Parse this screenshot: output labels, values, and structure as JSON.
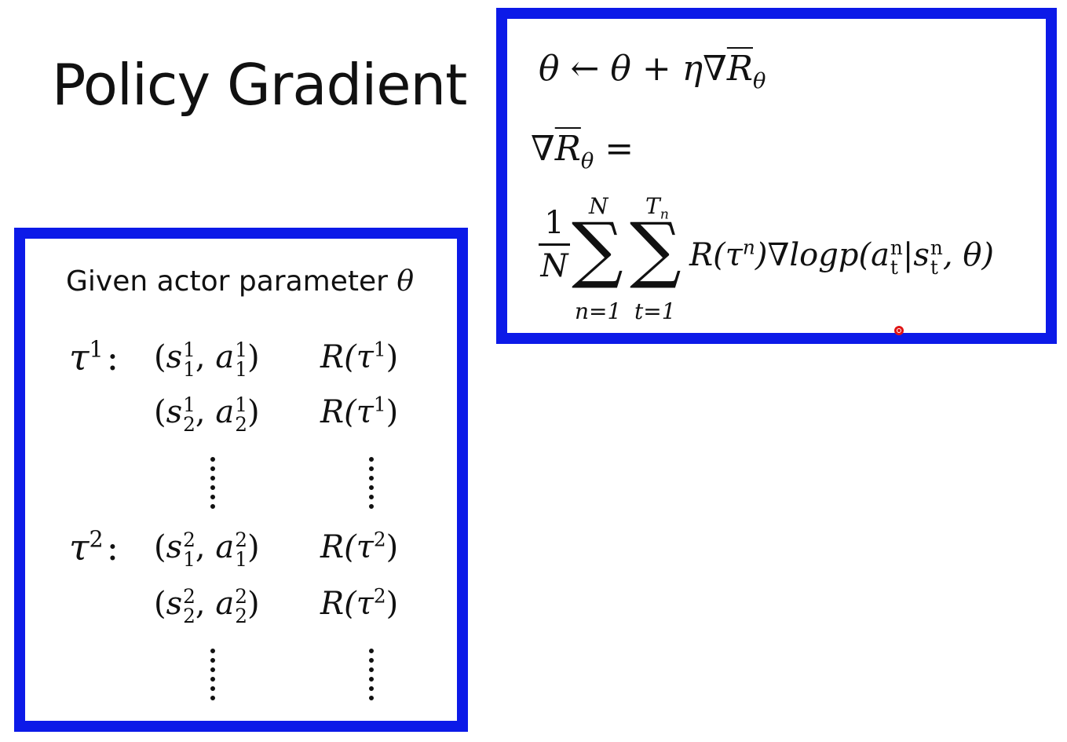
{
  "title": "Policy Gradient",
  "left_box": {
    "given_text": "Given actor parameter ",
    "given_symbol": "θ",
    "trajectories": [
      {
        "label": "τ",
        "index": "1",
        "steps": [
          {
            "s": "s",
            "sup": "1",
            "sub": "1",
            "a": "a",
            "a_sup": "1",
            "a_sub": "1",
            "reward": "R(τ",
            "reward_sup": "1",
            "reward_close": ")"
          },
          {
            "s": "s",
            "sup": "1",
            "sub": "2",
            "a": "a",
            "a_sup": "1",
            "a_sub": "2",
            "reward": "R(τ",
            "reward_sup": "1",
            "reward_close": ")"
          }
        ]
      },
      {
        "label": "τ",
        "index": "2",
        "steps": [
          {
            "s": "s",
            "sup": "2",
            "sub": "1",
            "a": "a",
            "a_sup": "2",
            "a_sub": "1",
            "reward": "R(τ",
            "reward_sup": "2",
            "reward_close": ")"
          },
          {
            "s": "s",
            "sup": "2",
            "sub": "2",
            "a": "a",
            "a_sup": "2",
            "a_sub": "2",
            "reward": "R(τ",
            "reward_sup": "2",
            "reward_close": ")"
          }
        ]
      }
    ]
  },
  "right_box": {
    "update_rule": {
      "lhs": "θ",
      "arrow": "←",
      "rhs_theta": "θ",
      "plus": "+",
      "eta": "η",
      "nabla": "∇",
      "R": "R",
      "R_sub": "θ"
    },
    "gradient_lhs": {
      "nabla": "∇",
      "R": "R",
      "R_sub": "θ",
      "equals": "="
    },
    "expansion": {
      "frac_num": "1",
      "frac_den": "N",
      "sum1_symbol": "∑",
      "sum1_upper": "N",
      "sum1_lower": "n=1",
      "sum2_symbol": "∑",
      "sum2_upper": "T",
      "sum2_upper_sub": "n",
      "sum2_lower": "t=1",
      "body_R": "R(τ",
      "body_R_sup": "n",
      "body_mid": ")∇logp(a",
      "a_sup": "n",
      "a_sub": "t",
      "pipe": "|s",
      "s_sup": "n",
      "s_sub": "t",
      "tail": ", θ)"
    }
  },
  "colors": {
    "box_border": "#0c1ae8",
    "text": "#111111",
    "pointer": "#e01515"
  }
}
